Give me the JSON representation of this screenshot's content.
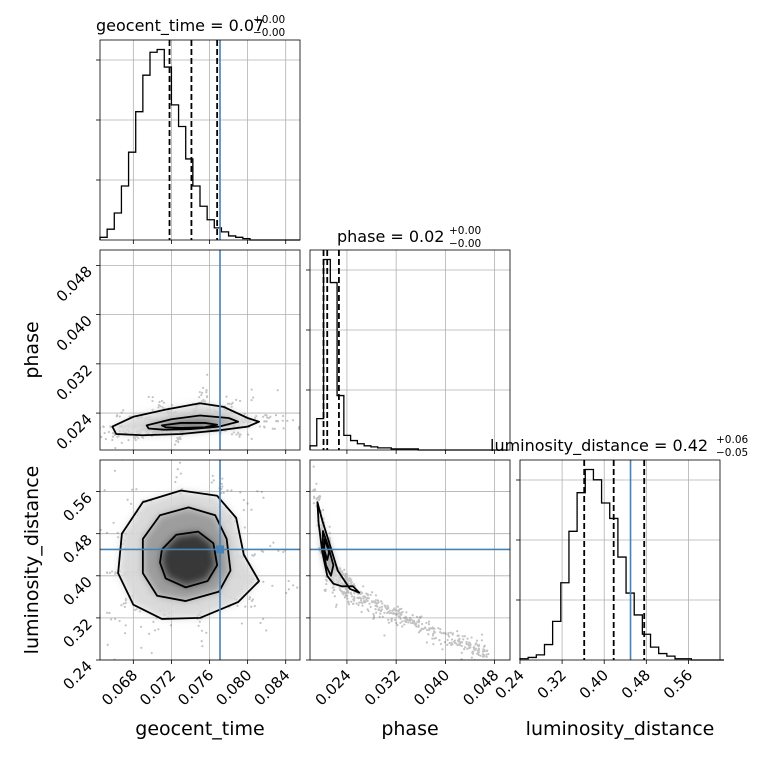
{
  "chart_data": {
    "type": "corner",
    "parameters": [
      {
        "name": "geocent_time",
        "xlabel": "geocent_time",
        "ylabel": "",
        "title": "geocent_time = 0.07",
        "title_plus": "+0.00",
        "title_minus": "−0.00",
        "range": [
          0.0645,
          0.0855
        ],
        "ticks": [
          0.068,
          0.072,
          0.076,
          0.08,
          0.084
        ],
        "tick_labels": [
          "0.068",
          "0.072",
          "0.076",
          "0.080",
          "0.084"
        ],
        "truth": 0.0771,
        "quantiles": [
          0.0718,
          0.0741,
          0.0768
        ],
        "histogram": {
          "bin_start": 0.0645,
          "bin_width": 0.00075,
          "counts": [
            2,
            8,
            20,
            40,
            65,
            95,
            122,
            139,
            141,
            128,
            100,
            84,
            60,
            40,
            25,
            15,
            9,
            6,
            3,
            2,
            1,
            0,
            0,
            0,
            0,
            0,
            0,
            0
          ]
        }
      },
      {
        "name": "phase",
        "xlabel": "phase",
        "ylabel": "phase",
        "title": "phase = 0.02",
        "title_plus": "+0.00",
        "title_minus": "−0.00",
        "range": [
          0.018,
          0.0505
        ],
        "ticks": [
          0.024,
          0.032,
          0.04,
          0.048
        ],
        "tick_labels": [
          "0.024",
          "0.032",
          "0.040",
          "0.048"
        ],
        "truth": null,
        "quantiles": [
          0.0202,
          0.0208,
          0.0227
        ],
        "histogram": {
          "bin_start": 0.018,
          "bin_width": 0.0011,
          "counts": [
            4,
            30,
            182,
            160,
            52,
            14,
            9,
            6,
            4,
            3,
            2,
            2,
            1,
            1,
            1,
            1,
            0,
            0,
            0,
            0,
            0,
            0,
            0,
            0,
            0,
            0,
            0,
            0,
            0
          ]
        }
      },
      {
        "name": "luminosity_distance",
        "xlabel": "luminosity_distance",
        "ylabel": "luminosity_distance",
        "title": "luminosity_distance = 0.42",
        "title_plus": "+0.06",
        "title_minus": "−0.05",
        "range": [
          0.24,
          0.62
        ],
        "ticks": [
          0.24,
          0.32,
          0.4,
          0.48,
          0.56
        ],
        "tick_labels": [
          "0.24",
          "0.32",
          "0.40",
          "0.48",
          "0.56"
        ],
        "truth": 0.45,
        "quantiles": [
          0.362,
          0.418,
          0.476
        ],
        "histogram": {
          "bin_start": 0.24,
          "bin_width": 0.0155,
          "counts": [
            1,
            2,
            4,
            12,
            30,
            60,
            100,
            130,
            148,
            140,
            122,
            110,
            80,
            52,
            35,
            20,
            10,
            5,
            3,
            1,
            1,
            0,
            0,
            0,
            0
          ]
        }
      }
    ],
    "pairs": [
      {
        "x": "geocent_time",
        "y": "phase",
        "center": [
          0.0735,
          0.0222
        ],
        "contours": [
          [
            [
              0.0658,
              0.0218
            ],
            [
              0.068,
              0.0234
            ],
            [
              0.0715,
              0.0246
            ],
            [
              0.075,
              0.0256
            ],
            [
              0.0775,
              0.025
            ],
            [
              0.08,
              0.0232
            ],
            [
              0.0812,
              0.0226
            ],
            [
              0.08,
              0.0218
            ],
            [
              0.077,
              0.0212
            ],
            [
              0.073,
              0.0206
            ],
            [
              0.069,
              0.0204
            ],
            [
              0.0662,
              0.0206
            ]
          ],
          [
            [
              0.0694,
              0.022
            ],
            [
              0.072,
              0.023
            ],
            [
              0.075,
              0.0236
            ],
            [
              0.078,
              0.0232
            ],
            [
              0.079,
              0.0226
            ],
            [
              0.077,
              0.0218
            ],
            [
              0.074,
              0.0214
            ],
            [
              0.0712,
              0.0213
            ],
            [
              0.0696,
              0.0215
            ]
          ],
          [
            [
              0.071,
              0.022
            ],
            [
              0.073,
              0.0224
            ],
            [
              0.0755,
              0.0224
            ],
            [
              0.0768,
              0.0221
            ],
            [
              0.0755,
              0.0217
            ],
            [
              0.073,
              0.0216
            ],
            [
              0.0714,
              0.0217
            ]
          ]
        ],
        "truth": [
          0.0771,
          null
        ]
      },
      {
        "x": "geocent_time",
        "y": "luminosity_distance",
        "center": [
          0.074,
          0.415
        ],
        "contours": [
          [
            [
              0.0668,
              0.48
            ],
            [
              0.069,
              0.54
            ],
            [
              0.073,
              0.562
            ],
            [
              0.0768,
              0.552
            ],
            [
              0.0788,
              0.51
            ],
            [
              0.0796,
              0.44
            ],
            [
              0.0812,
              0.39
            ],
            [
              0.079,
              0.35
            ],
            [
              0.075,
              0.32
            ],
            [
              0.071,
              0.318
            ],
            [
              0.068,
              0.345
            ],
            [
              0.0664,
              0.405
            ]
          ],
          [
            [
              0.069,
              0.47
            ],
            [
              0.0708,
              0.515
            ],
            [
              0.0738,
              0.53
            ],
            [
              0.0766,
              0.515
            ],
            [
              0.0778,
              0.47
            ],
            [
              0.0782,
              0.41
            ],
            [
              0.077,
              0.37
            ],
            [
              0.0735,
              0.352
            ],
            [
              0.0705,
              0.362
            ],
            [
              0.069,
              0.405
            ]
          ],
          [
            [
              0.071,
              0.45
            ],
            [
              0.0725,
              0.478
            ],
            [
              0.0748,
              0.484
            ],
            [
              0.0764,
              0.462
            ],
            [
              0.0768,
              0.42
            ],
            [
              0.0758,
              0.39
            ],
            [
              0.0735,
              0.378
            ],
            [
              0.0714,
              0.395
            ],
            [
              0.0708,
              0.425
            ]
          ]
        ],
        "truth": [
          0.0771,
          0.45
        ]
      },
      {
        "x": "phase",
        "y": "luminosity_distance",
        "center": [
          0.0212,
          0.43
        ],
        "contours": [
          [
            [
              0.0192,
              0.54
            ],
            [
              0.02,
              0.505
            ],
            [
              0.0212,
              0.46
            ],
            [
              0.0225,
              0.41
            ],
            [
              0.0245,
              0.375
            ],
            [
              0.026,
              0.368
            ],
            [
              0.025,
              0.38
            ],
            [
              0.0232,
              0.38
            ],
            [
              0.0218,
              0.385
            ],
            [
              0.0208,
              0.4
            ],
            [
              0.02,
              0.445
            ],
            [
              0.0194,
              0.5
            ]
          ],
          [
            [
              0.0201,
              0.485
            ],
            [
              0.021,
              0.455
            ],
            [
              0.0218,
              0.42
            ],
            [
              0.0214,
              0.4
            ],
            [
              0.0206,
              0.42
            ],
            [
              0.0201,
              0.46
            ]
          ],
          [
            [
              0.0204,
              0.47
            ],
            [
              0.0211,
              0.445
            ],
            [
              0.0208,
              0.43
            ],
            [
              0.0203,
              0.45
            ]
          ]
        ],
        "truth": [
          null,
          0.45
        ]
      }
    ],
    "truth_color": "#4682b4",
    "line_color": "#000000",
    "grid": true
  }
}
